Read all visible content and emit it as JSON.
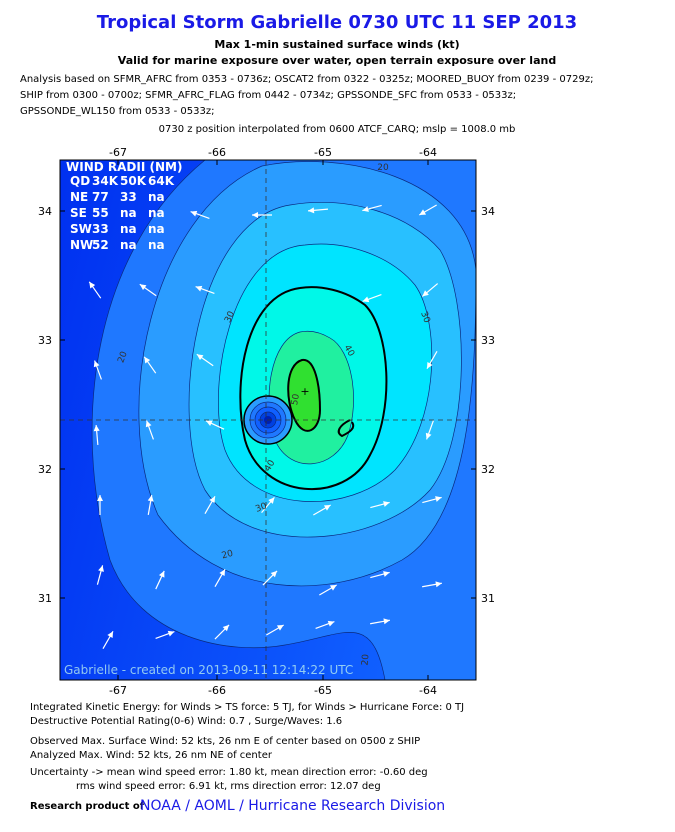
{
  "header": {
    "title": "Tropical Storm Gabrielle 0730 UTC 11 SEP 2013",
    "subtitle": [
      "Max 1-min sustained surface winds (kt)",
      "Valid for marine exposure over water, open terrain exposure over land"
    ],
    "analysis": [
      "Analysis based on SFMR_AFRC from 0353 - 0736z; OSCAT2 from 0322 - 0325z; MOORED_BUOY from 0239 - 0729z;",
      "SHIP from 0300 - 0700z; SFMR_AFRC_FLAG from 0442 - 0734z; GPSSONDE_SFC from 0533 - 0533z;",
      "GPSSONDE_WL150 from 0533 - 0533z;"
    ],
    "position": "0730 z position interpolated from 0600 ATCF_CARQ; mslp = 1008.0 mb"
  },
  "map": {
    "lon_labels": [
      "-67",
      "-66",
      "-65",
      "-64"
    ],
    "lat_labels": [
      "34",
      "33",
      "32",
      "31"
    ],
    "contour_labels": [
      "20",
      "30",
      "40",
      "50",
      "30",
      "20",
      "40",
      "30",
      "20",
      "20"
    ],
    "credit": "Gabrielle - created on 2013-09-11 12:14:22 UTC",
    "wind_radii": {
      "title": "WIND RADII (NM)",
      "header": [
        "QD",
        "34K",
        "50K",
        "64K"
      ],
      "rows": [
        [
          "NE",
          "77",
          "33",
          "na"
        ],
        [
          "SE",
          "55",
          "na",
          "na"
        ],
        [
          "SW",
          "33",
          "na",
          "na"
        ],
        [
          "NW",
          "52",
          "na",
          "na"
        ]
      ]
    }
  },
  "footer": {
    "lines": [
      "Integrated Kinetic Energy: for Winds > TS force: 5 TJ, for Winds > Hurricane Force: 0 TJ",
      "Destructive Potential Rating(0-6)  Wind: 0.7 , Surge/Waves: 1.6",
      "Observed Max. Surface Wind: 52 kts, 26 nm E of center based on 0500 z SHIP",
      "Analyzed Max. Wind: 52 kts, 26 nm  NE of center",
      "Uncertainty -> mean wind speed error: 1.80 kt, mean direction error:  -0.60 deg",
      "rms wind speed error: 6.91 kt, rms direction error: 12.07 deg"
    ],
    "research": "Research product of",
    "org": "NOAA / AOML / Hurricane Research Division"
  }
}
